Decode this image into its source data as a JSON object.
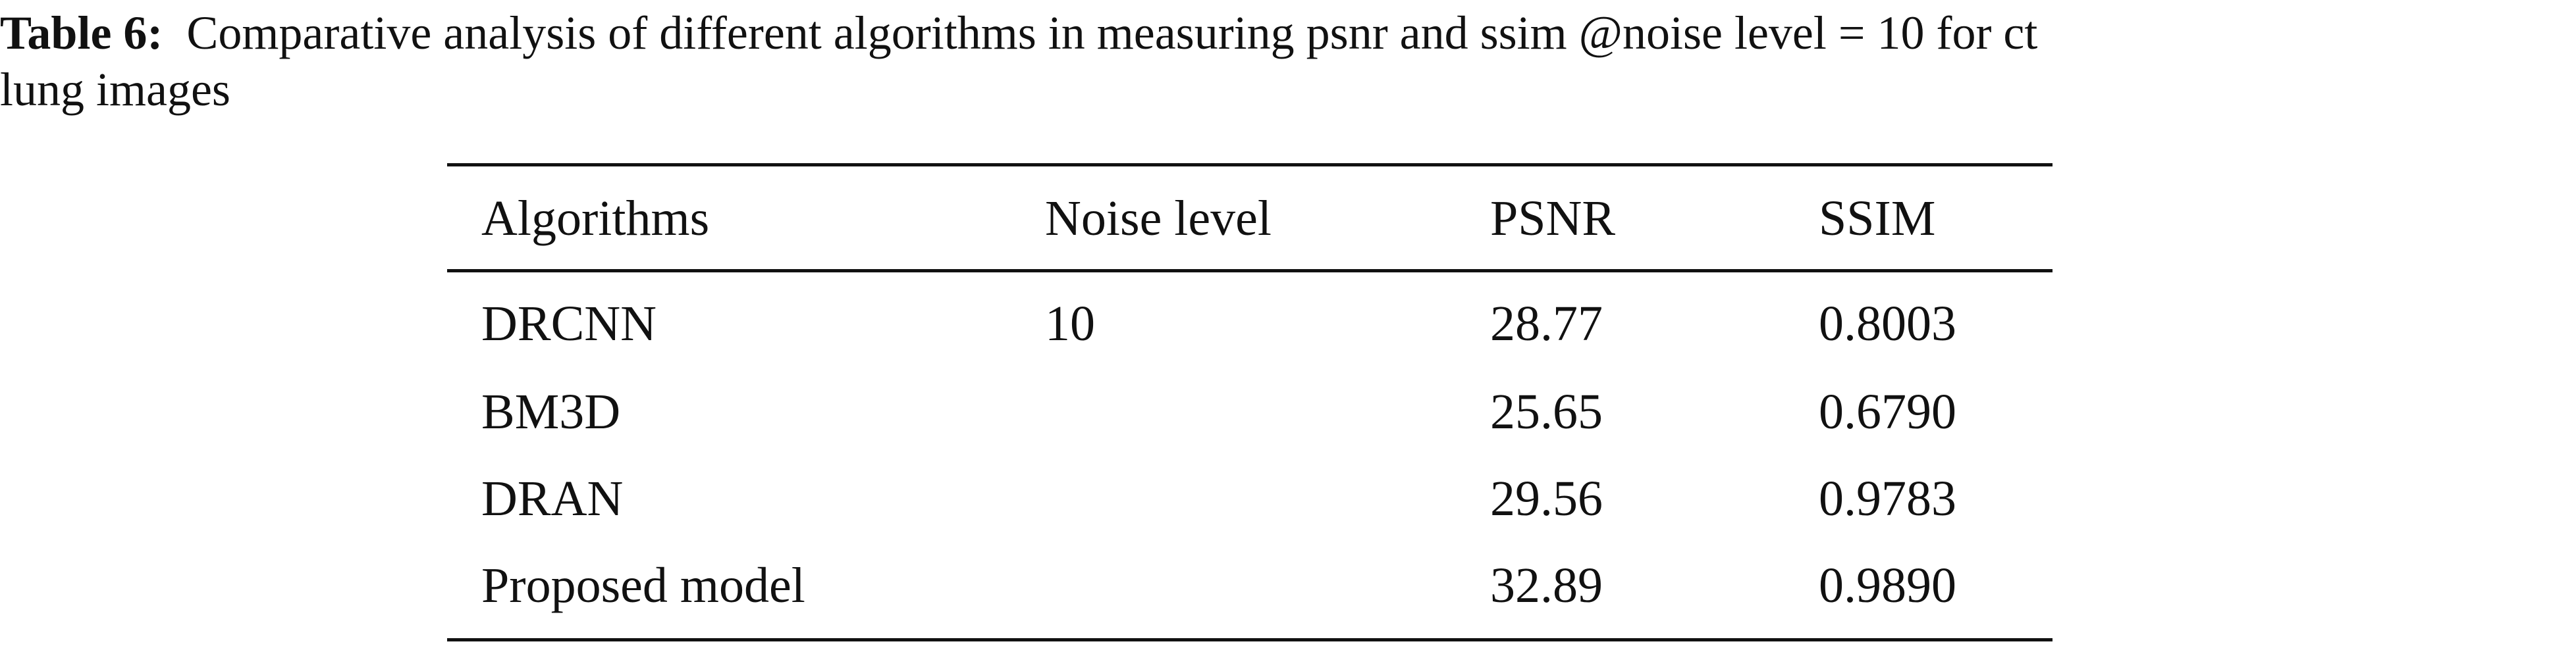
{
  "caption": {
    "label": "Table 6:",
    "text": "Comparative analysis of different algorithms in measuring psnr and ssim @noise level = 10 for ct",
    "text_line2": "lung images"
  },
  "table": {
    "header": [
      "Algorithms",
      "Noise level",
      "PSNR",
      "SSIM"
    ],
    "rows": [
      {
        "algorithm": "DRCNN",
        "noise_level": "10",
        "psnr": "28.77",
        "ssim": "0.8003"
      },
      {
        "algorithm": "BM3D",
        "psnr": "25.65",
        "ssim": "0.6790"
      },
      {
        "algorithm": "DRAN",
        "psnr": "29.56",
        "ssim": "0.9783"
      },
      {
        "algorithm": "Proposed model",
        "psnr": "32.89",
        "ssim": "0.9890"
      }
    ]
  }
}
